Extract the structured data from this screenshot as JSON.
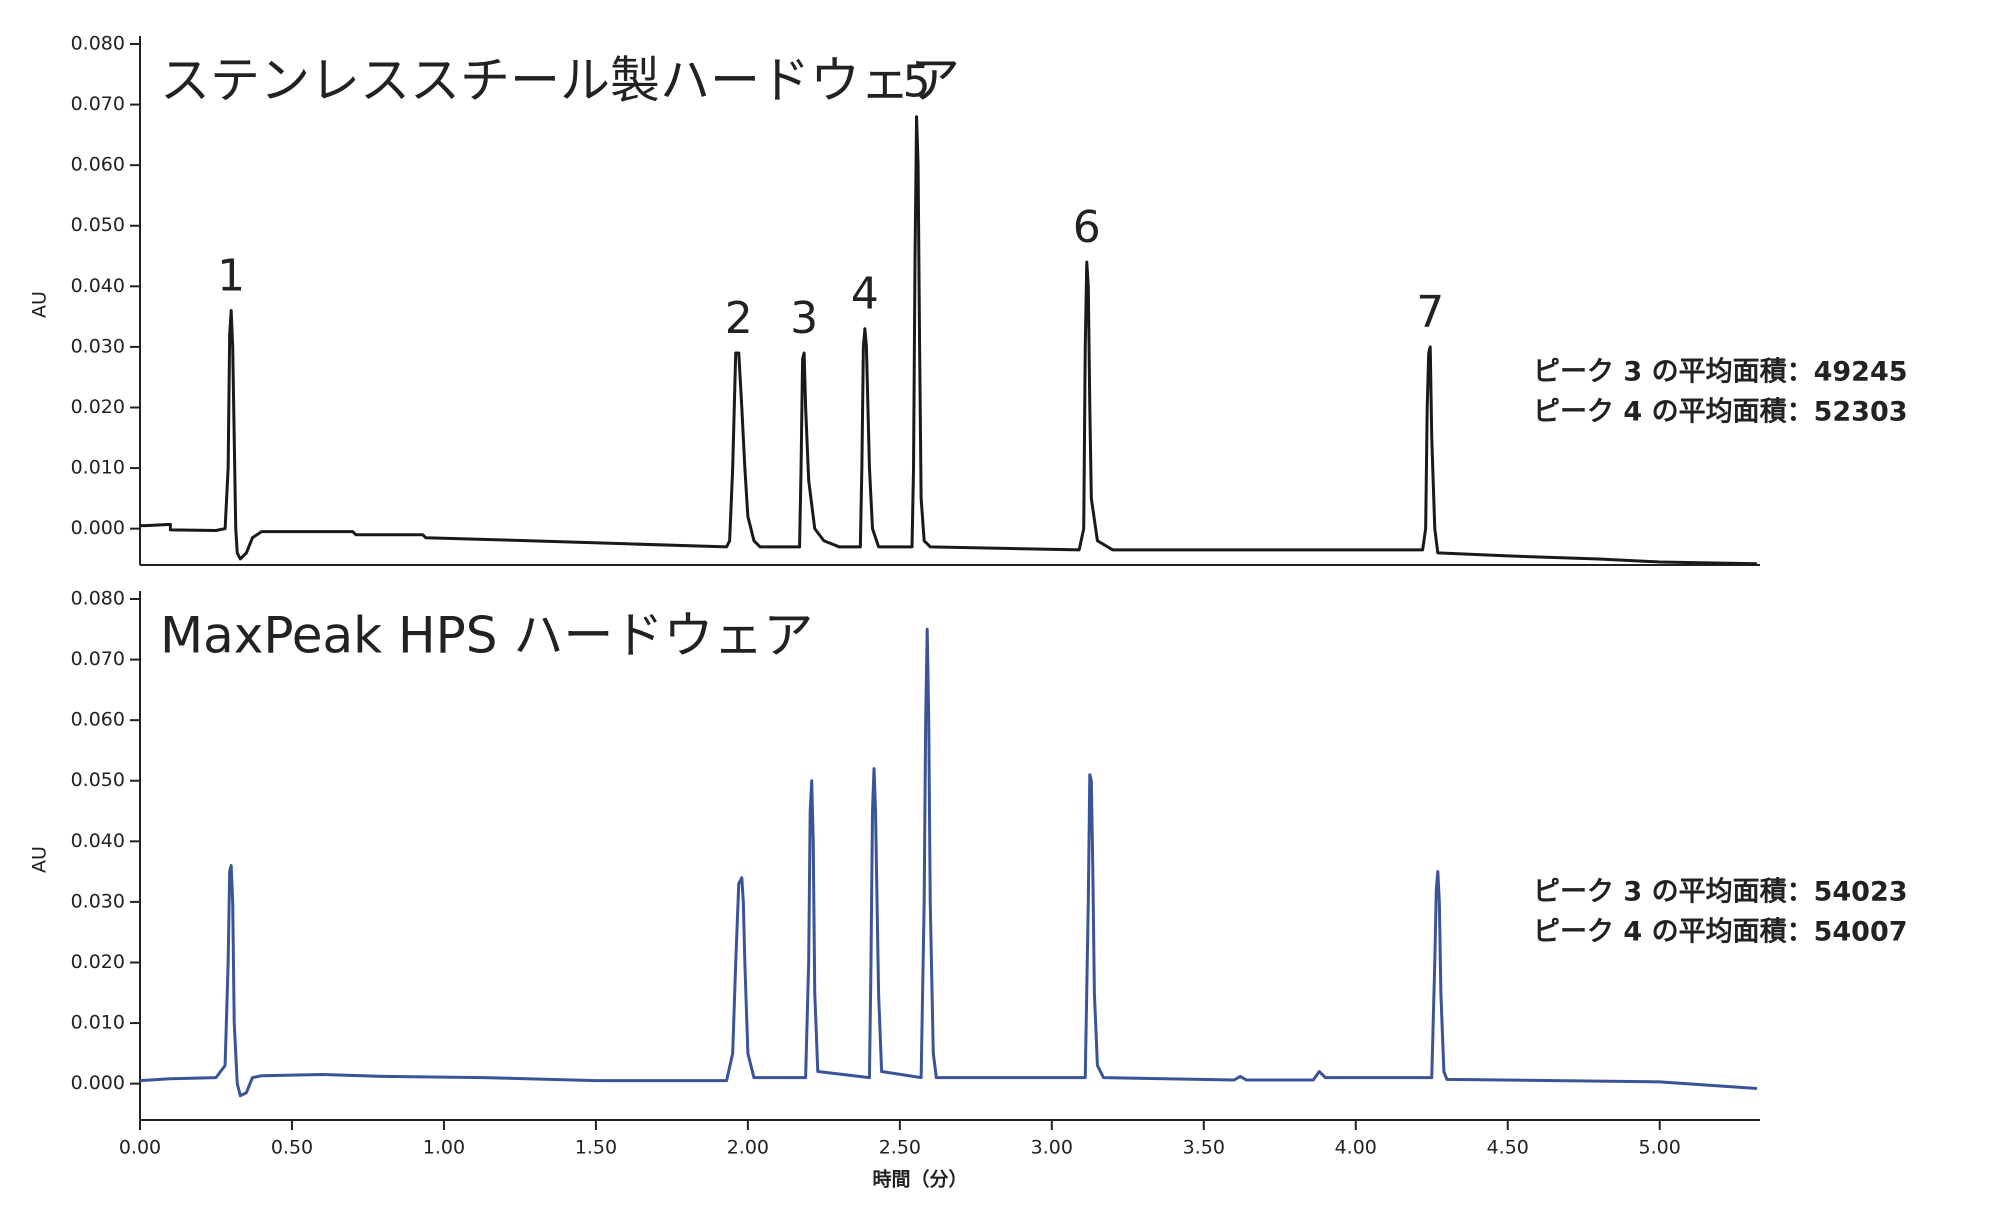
{
  "chart_data": [
    {
      "type": "line",
      "title": "ステンレススチール製ハードウェア",
      "ylabel": "AU",
      "xlim": [
        0,
        5.33
      ],
      "ylim": [
        -0.006,
        0.08
      ],
      "yticks": [
        {
          "value": 0,
          "label": "0.000"
        },
        {
          "value": 0.01,
          "label": "0.010"
        },
        {
          "value": 0.02,
          "label": "0.020"
        },
        {
          "value": 0.03,
          "label": "0.030"
        },
        {
          "value": 0.04,
          "label": "0.040"
        },
        {
          "value": 0.05,
          "label": "0.050"
        },
        {
          "value": 0.06,
          "label": "0.060"
        },
        {
          "value": 0.07,
          "label": "0.070"
        },
        {
          "value": 0.08,
          "label": "0.080"
        }
      ],
      "x": [
        0,
        0.02,
        0.1,
        0.1,
        0.25,
        0.28,
        0.29,
        0.295,
        0.3,
        0.305,
        0.31,
        0.315,
        0.32,
        0.33,
        0.35,
        0.37,
        0.4,
        0.7,
        0.71,
        0.93,
        0.94,
        1.28,
        1.6,
        1.93,
        1.94,
        1.95,
        1.96,
        1.97,
        1.98,
        1.99,
        2.0,
        2.02,
        2.04,
        2.17,
        2.175,
        2.18,
        2.185,
        2.19,
        2.2,
        2.22,
        2.25,
        2.3,
        2.37,
        2.375,
        2.38,
        2.385,
        2.39,
        2.4,
        2.41,
        2.43,
        2.54,
        2.545,
        2.55,
        2.555,
        2.56,
        2.565,
        2.57,
        2.58,
        2.6,
        3.09,
        3.105,
        3.11,
        3.115,
        3.12,
        3.125,
        3.13,
        3.15,
        3.2,
        4.22,
        4.23,
        4.235,
        4.24,
        4.245,
        4.25,
        4.26,
        4.27,
        4.5,
        4.8,
        5.0,
        5.32
      ],
      "series": [
        {
          "color": "#1a1a1a",
          "values": [
            0.0005,
            0.0005,
            0.0007,
            -0.0002,
            -0.0003,
            0,
            0.01,
            0.032,
            0.036,
            0.03,
            0.015,
            0,
            -0.004,
            -0.005,
            -0.004,
            -0.0015,
            -0.0005,
            -0.0005,
            -0.001,
            -0.001,
            -0.0015,
            -0.002,
            -0.0025,
            -0.003,
            -0.002,
            0.01,
            0.029,
            0.029,
            0.02,
            0.01,
            0.002,
            -0.002,
            -0.003,
            -0.003,
            0.01,
            0.028,
            0.029,
            0.02,
            0.008,
            0,
            -0.002,
            -0.003,
            -0.003,
            0.01,
            0.03,
            0.033,
            0.03,
            0.01,
            0,
            -0.003,
            -0.003,
            0.01,
            0.045,
            0.068,
            0.06,
            0.03,
            0.005,
            -0.002,
            -0.003,
            -0.0035,
            0,
            0.03,
            0.044,
            0.04,
            0.02,
            0.005,
            -0.002,
            -0.0035,
            -0.0035,
            0,
            0.02,
            0.029,
            0.03,
            0.015,
            0,
            -0.004,
            -0.0045,
            -0.005,
            -0.0055,
            -0.0058
          ]
        }
      ],
      "annotations": [
        {
          "text": "1",
          "x": 0.3,
          "y": 0.036
        },
        {
          "text": "2",
          "x": 1.97,
          "y": 0.029
        },
        {
          "text": "3",
          "x": 2.185,
          "y": 0.029
        },
        {
          "text": "4",
          "x": 2.385,
          "y": 0.033
        },
        {
          "text": "5",
          "x": 2.555,
          "y": 0.068
        },
        {
          "text": "6",
          "x": 3.115,
          "y": 0.044
        },
        {
          "text": "7",
          "x": 4.245,
          "y": 0.03
        }
      ],
      "notes": [
        "ピーク 3 の平均面積：49245",
        "ピーク 4 の平均面積：52303"
      ]
    },
    {
      "type": "line",
      "title": "MaxPeak HPS ハードウェア",
      "ylabel": "AU",
      "xlabel": "時間（分）",
      "xlim": [
        0,
        5.33
      ],
      "ylim": [
        -0.006,
        0.08
      ],
      "xticks": [
        {
          "value": 0,
          "label": "0.00"
        },
        {
          "value": 0.5,
          "label": "0.50"
        },
        {
          "value": 1,
          "label": "1.00"
        },
        {
          "value": 1.5,
          "label": "1.50"
        },
        {
          "value": 2,
          "label": "2.00"
        },
        {
          "value": 2.5,
          "label": "2.50"
        },
        {
          "value": 3,
          "label": "3.00"
        },
        {
          "value": 3.5,
          "label": "3.50"
        },
        {
          "value": 4,
          "label": "4.00"
        },
        {
          "value": 4.5,
          "label": "4.50"
        },
        {
          "value": 5,
          "label": "5.00"
        }
      ],
      "yticks": [
        {
          "value": 0,
          "label": "0.000"
        },
        {
          "value": 0.01,
          "label": "0.010"
        },
        {
          "value": 0.02,
          "label": "0.020"
        },
        {
          "value": 0.03,
          "label": "0.030"
        },
        {
          "value": 0.04,
          "label": "0.040"
        },
        {
          "value": 0.05,
          "label": "0.050"
        },
        {
          "value": 0.06,
          "label": "0.060"
        },
        {
          "value": 0.07,
          "label": "0.070"
        },
        {
          "value": 0.08,
          "label": "0.080"
        }
      ],
      "x": [
        0,
        0.1,
        0.25,
        0.28,
        0.29,
        0.295,
        0.3,
        0.305,
        0.31,
        0.32,
        0.33,
        0.35,
        0.37,
        0.4,
        0.6,
        0.8,
        1.13,
        1.5,
        1.93,
        1.95,
        1.96,
        1.97,
        1.98,
        1.985,
        1.99,
        2.0,
        2.02,
        2.19,
        2.2,
        2.205,
        2.21,
        2.215,
        2.22,
        2.23,
        2.4,
        2.405,
        2.41,
        2.415,
        2.42,
        2.43,
        2.44,
        2.57,
        2.58,
        2.585,
        2.59,
        2.595,
        2.6,
        2.61,
        2.62,
        3.11,
        3.12,
        3.125,
        3.13,
        3.135,
        3.14,
        3.15,
        3.17,
        3.6,
        3.62,
        3.64,
        3.86,
        3.88,
        3.9,
        4.25,
        4.26,
        4.265,
        4.27,
        4.275,
        4.28,
        4.29,
        4.3,
        5.0,
        5.32
      ],
      "series": [
        {
          "color": "#3a5497",
          "values": [
            0.0005,
            0.0008,
            0.001,
            0.003,
            0.02,
            0.035,
            0.036,
            0.03,
            0.01,
            0,
            -0.002,
            -0.0015,
            0.001,
            0.0013,
            0.0015,
            0.0012,
            0.001,
            0.0005,
            0.0005,
            0.005,
            0.02,
            0.033,
            0.034,
            0.03,
            0.02,
            0.005,
            0.001,
            0.001,
            0.02,
            0.045,
            0.05,
            0.04,
            0.015,
            0.002,
            0.001,
            0.02,
            0.045,
            0.052,
            0.045,
            0.015,
            0.002,
            0.001,
            0.03,
            0.06,
            0.075,
            0.06,
            0.03,
            0.005,
            0.001,
            0.001,
            0.03,
            0.051,
            0.05,
            0.035,
            0.015,
            0.003,
            0.001,
            0.0006,
            0.0012,
            0.0006,
            0.0006,
            0.002,
            0.001,
            0.001,
            0.02,
            0.032,
            0.035,
            0.03,
            0.015,
            0.002,
            0.0007,
            0.0003,
            -0.0008
          ]
        }
      ],
      "notes": [
        "ピーク 3 の平均面積：54023",
        "ピーク 4 の平均面積：54007"
      ]
    }
  ]
}
